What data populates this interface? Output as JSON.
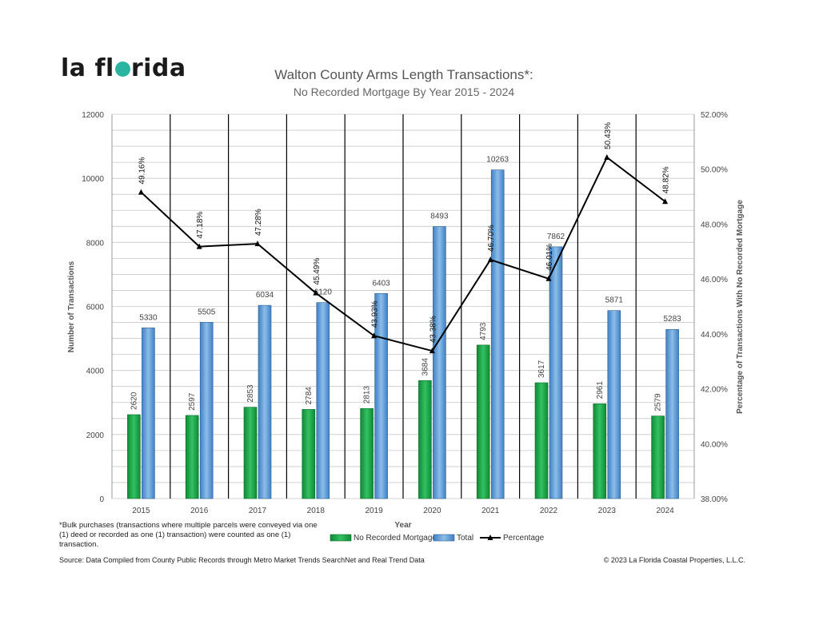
{
  "brand": {
    "logo_part1": "la fl",
    "logo_part2": "rida",
    "logo_dot_color": "#2bb5a0"
  },
  "footnote": "*Bulk purchases (transactions where multiple parcels were conveyed via one (1) deed or recorded as one (1) transaction) were counted as one (1) transaction.",
  "source": "Source:  Data Compiled from County Public Records through Metro Market Trends SearchNet and Real Trend Data",
  "copyright": "© 2023 La Florida Coastal Properties, L.L.C.",
  "chart_data": {
    "type": "bar",
    "title": "Walton County Arms Length Transactions*:",
    "subtitle": "No Recorded Mortgage By Year 2015 - 2024",
    "xlabel": "Year",
    "ylabel": "Number of Transactions",
    "y2label": "Percentage of Transactions With No Recorded Mortgage",
    "categories": [
      "2015",
      "2016",
      "2017",
      "2018",
      "2019",
      "2020",
      "2021",
      "2022",
      "2023",
      "2024"
    ],
    "ylim": [
      0,
      12000
    ],
    "yticks": [
      0,
      2000,
      4000,
      6000,
      8000,
      10000,
      12000
    ],
    "y2lim": [
      38,
      52
    ],
    "y2ticks": [
      "38.00%",
      "40.00%",
      "42.00%",
      "44.00%",
      "46.00%",
      "48.00%",
      "50.00%",
      "52.00%"
    ],
    "grid": true,
    "legend_position": "bottom",
    "series": [
      {
        "name": "No Recorded Mortgage",
        "type": "bar",
        "color": "#1fa84a",
        "values": [
          2620,
          2597,
          2853,
          2784,
          2813,
          3684,
          4793,
          3617,
          2961,
          2579
        ]
      },
      {
        "name": "Total",
        "type": "bar",
        "color": "#5b9bd5",
        "values": [
          5330,
          5505,
          6034,
          6120,
          6403,
          8493,
          10263,
          7862,
          5871,
          5283
        ]
      },
      {
        "name": "Percentage",
        "type": "line",
        "axis": "secondary",
        "color": "#000000",
        "values": [
          49.16,
          47.18,
          47.28,
          45.49,
          43.93,
          43.38,
          46.7,
          46.01,
          50.43,
          48.82
        ],
        "labels": [
          "49.16%",
          "47.18%",
          "47.28%",
          "45.49%",
          "43.93%",
          "43.38%",
          "46.70%",
          "46.01%",
          "50.43%",
          "48.82%"
        ]
      }
    ]
  }
}
